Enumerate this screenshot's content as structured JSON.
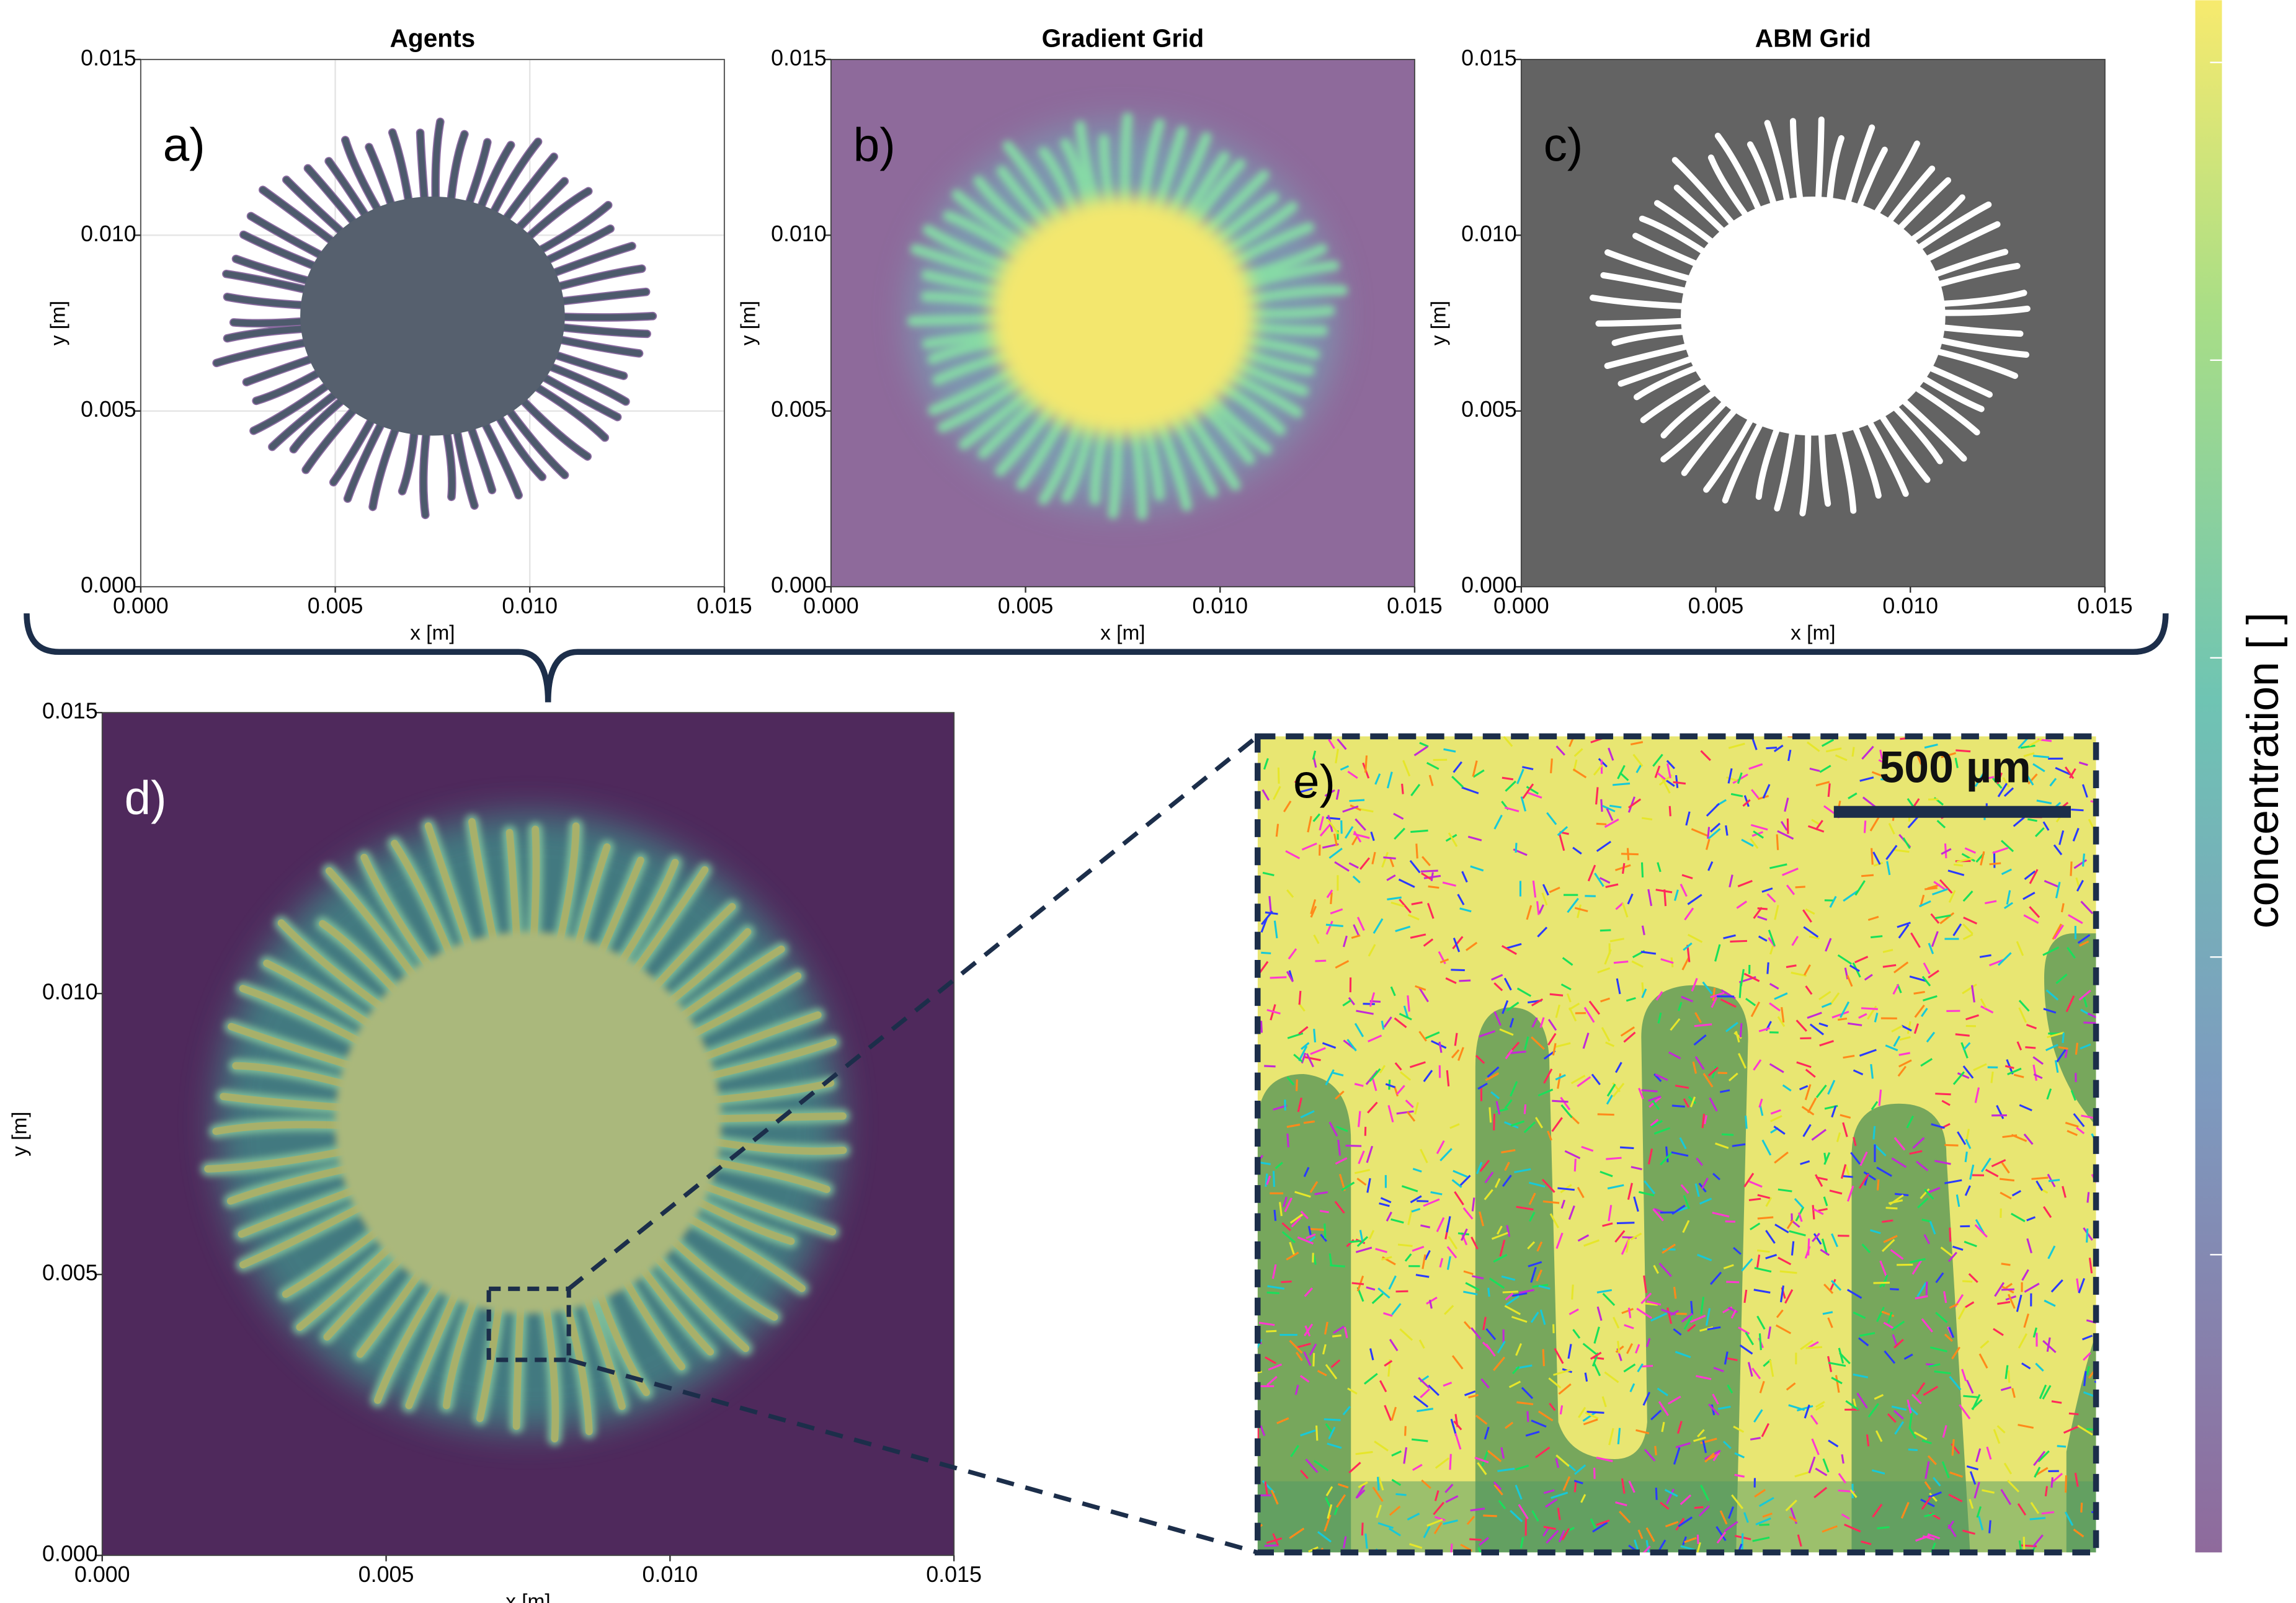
{
  "chart_data": [
    {
      "type": "image",
      "title": "Agents",
      "panel_label": "a)",
      "xlabel": "x [m]",
      "ylabel": "y [m]",
      "xlim": [
        0,
        0.015
      ],
      "ylim": [
        0,
        0.015
      ],
      "grid": true,
      "xticks": [
        {
          "value": 0,
          "label": "0.000"
        },
        {
          "value": 0.005,
          "label": "0.005"
        },
        {
          "value": 0.01,
          "label": "0.010"
        },
        {
          "value": 0.015,
          "label": "0.015"
        }
      ],
      "yticks": [
        {
          "value": 0,
          "label": "0.000"
        },
        {
          "value": 0.005,
          "label": "0.005"
        },
        {
          "value": 0.01,
          "label": "0.010"
        },
        {
          "value": 0.015,
          "label": "0.015"
        }
      ]
    },
    {
      "type": "image",
      "title": "Gradient Grid",
      "panel_label": "b)",
      "xlabel": "x [m]",
      "ylabel": "y [m]",
      "xlim": [
        0,
        0.015
      ],
      "ylim": [
        0,
        0.015
      ],
      "grid": false,
      "xticks": [
        {
          "value": 0,
          "label": "0.000"
        },
        {
          "value": 0.005,
          "label": "0.005"
        },
        {
          "value": 0.01,
          "label": "0.010"
        },
        {
          "value": 0.015,
          "label": "0.015"
        }
      ],
      "yticks": [
        {
          "value": 0,
          "label": "0.000"
        },
        {
          "value": 0.005,
          "label": "0.005"
        },
        {
          "value": 0.01,
          "label": "0.010"
        },
        {
          "value": 0.015,
          "label": "0.015"
        }
      ]
    },
    {
      "type": "image",
      "title": "ABM Grid",
      "panel_label": "c)",
      "xlabel": "x [m]",
      "ylabel": "y [m]",
      "xlim": [
        0,
        0.015
      ],
      "ylim": [
        0,
        0.015
      ],
      "grid": false,
      "xticks": [
        {
          "value": 0,
          "label": "0.000"
        },
        {
          "value": 0.005,
          "label": "0.005"
        },
        {
          "value": 0.01,
          "label": "0.010"
        },
        {
          "value": 0.015,
          "label": "0.015"
        }
      ],
      "yticks": [
        {
          "value": 0,
          "label": "0.000"
        },
        {
          "value": 0.005,
          "label": "0.005"
        },
        {
          "value": 0.01,
          "label": "0.010"
        },
        {
          "value": 0.015,
          "label": "0.015"
        }
      ]
    },
    {
      "type": "image",
      "panel_label": "d)",
      "xlabel": "x [m]",
      "ylabel": "y [m]",
      "xlim": [
        0,
        0.015
      ],
      "ylim": [
        0,
        0.015
      ],
      "grid": false,
      "xticks": [
        {
          "value": 0,
          "label": "0.000"
        },
        {
          "value": 0.005,
          "label": "0.005"
        },
        {
          "value": 0.01,
          "label": "0.010"
        },
        {
          "value": 0.015,
          "label": "0.015"
        }
      ],
      "yticks": [
        {
          "value": 0,
          "label": "0.000"
        },
        {
          "value": 0.005,
          "label": "0.005"
        },
        {
          "value": 0.01,
          "label": "0.010"
        },
        {
          "value": 0.015,
          "label": "0.015"
        }
      ]
    }
  ],
  "inset": {
    "panel_label": "e)",
    "scale_bar": "500 µm"
  },
  "colorbar": {
    "label": "concentration [ ]"
  }
}
